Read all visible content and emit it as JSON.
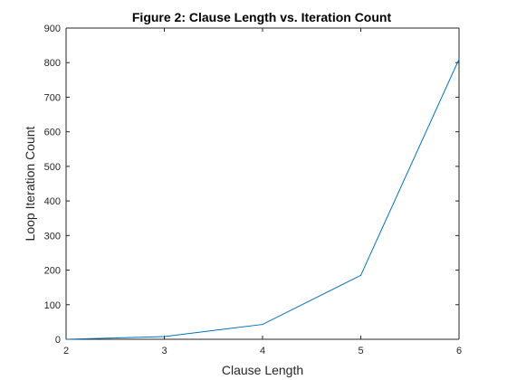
{
  "chart_data": {
    "type": "line",
    "title": "Figure 2: Clause Length vs. Iteration Count",
    "xlabel": "Clause Length",
    "ylabel": "Loop Iteration Count",
    "xlim": [
      2,
      6
    ],
    "ylim": [
      0,
      900
    ],
    "xticks": [
      2,
      3,
      4,
      5,
      6
    ],
    "yticks": [
      0,
      100,
      200,
      300,
      400,
      500,
      600,
      700,
      800,
      900
    ],
    "grid": false,
    "legend": "none",
    "x": [
      2,
      3,
      4,
      5,
      6
    ],
    "series": [
      {
        "values": [
          0,
          8,
          43,
          185,
          810
        ],
        "color": "#0072BD"
      }
    ],
    "axis_color": "#262626"
  }
}
